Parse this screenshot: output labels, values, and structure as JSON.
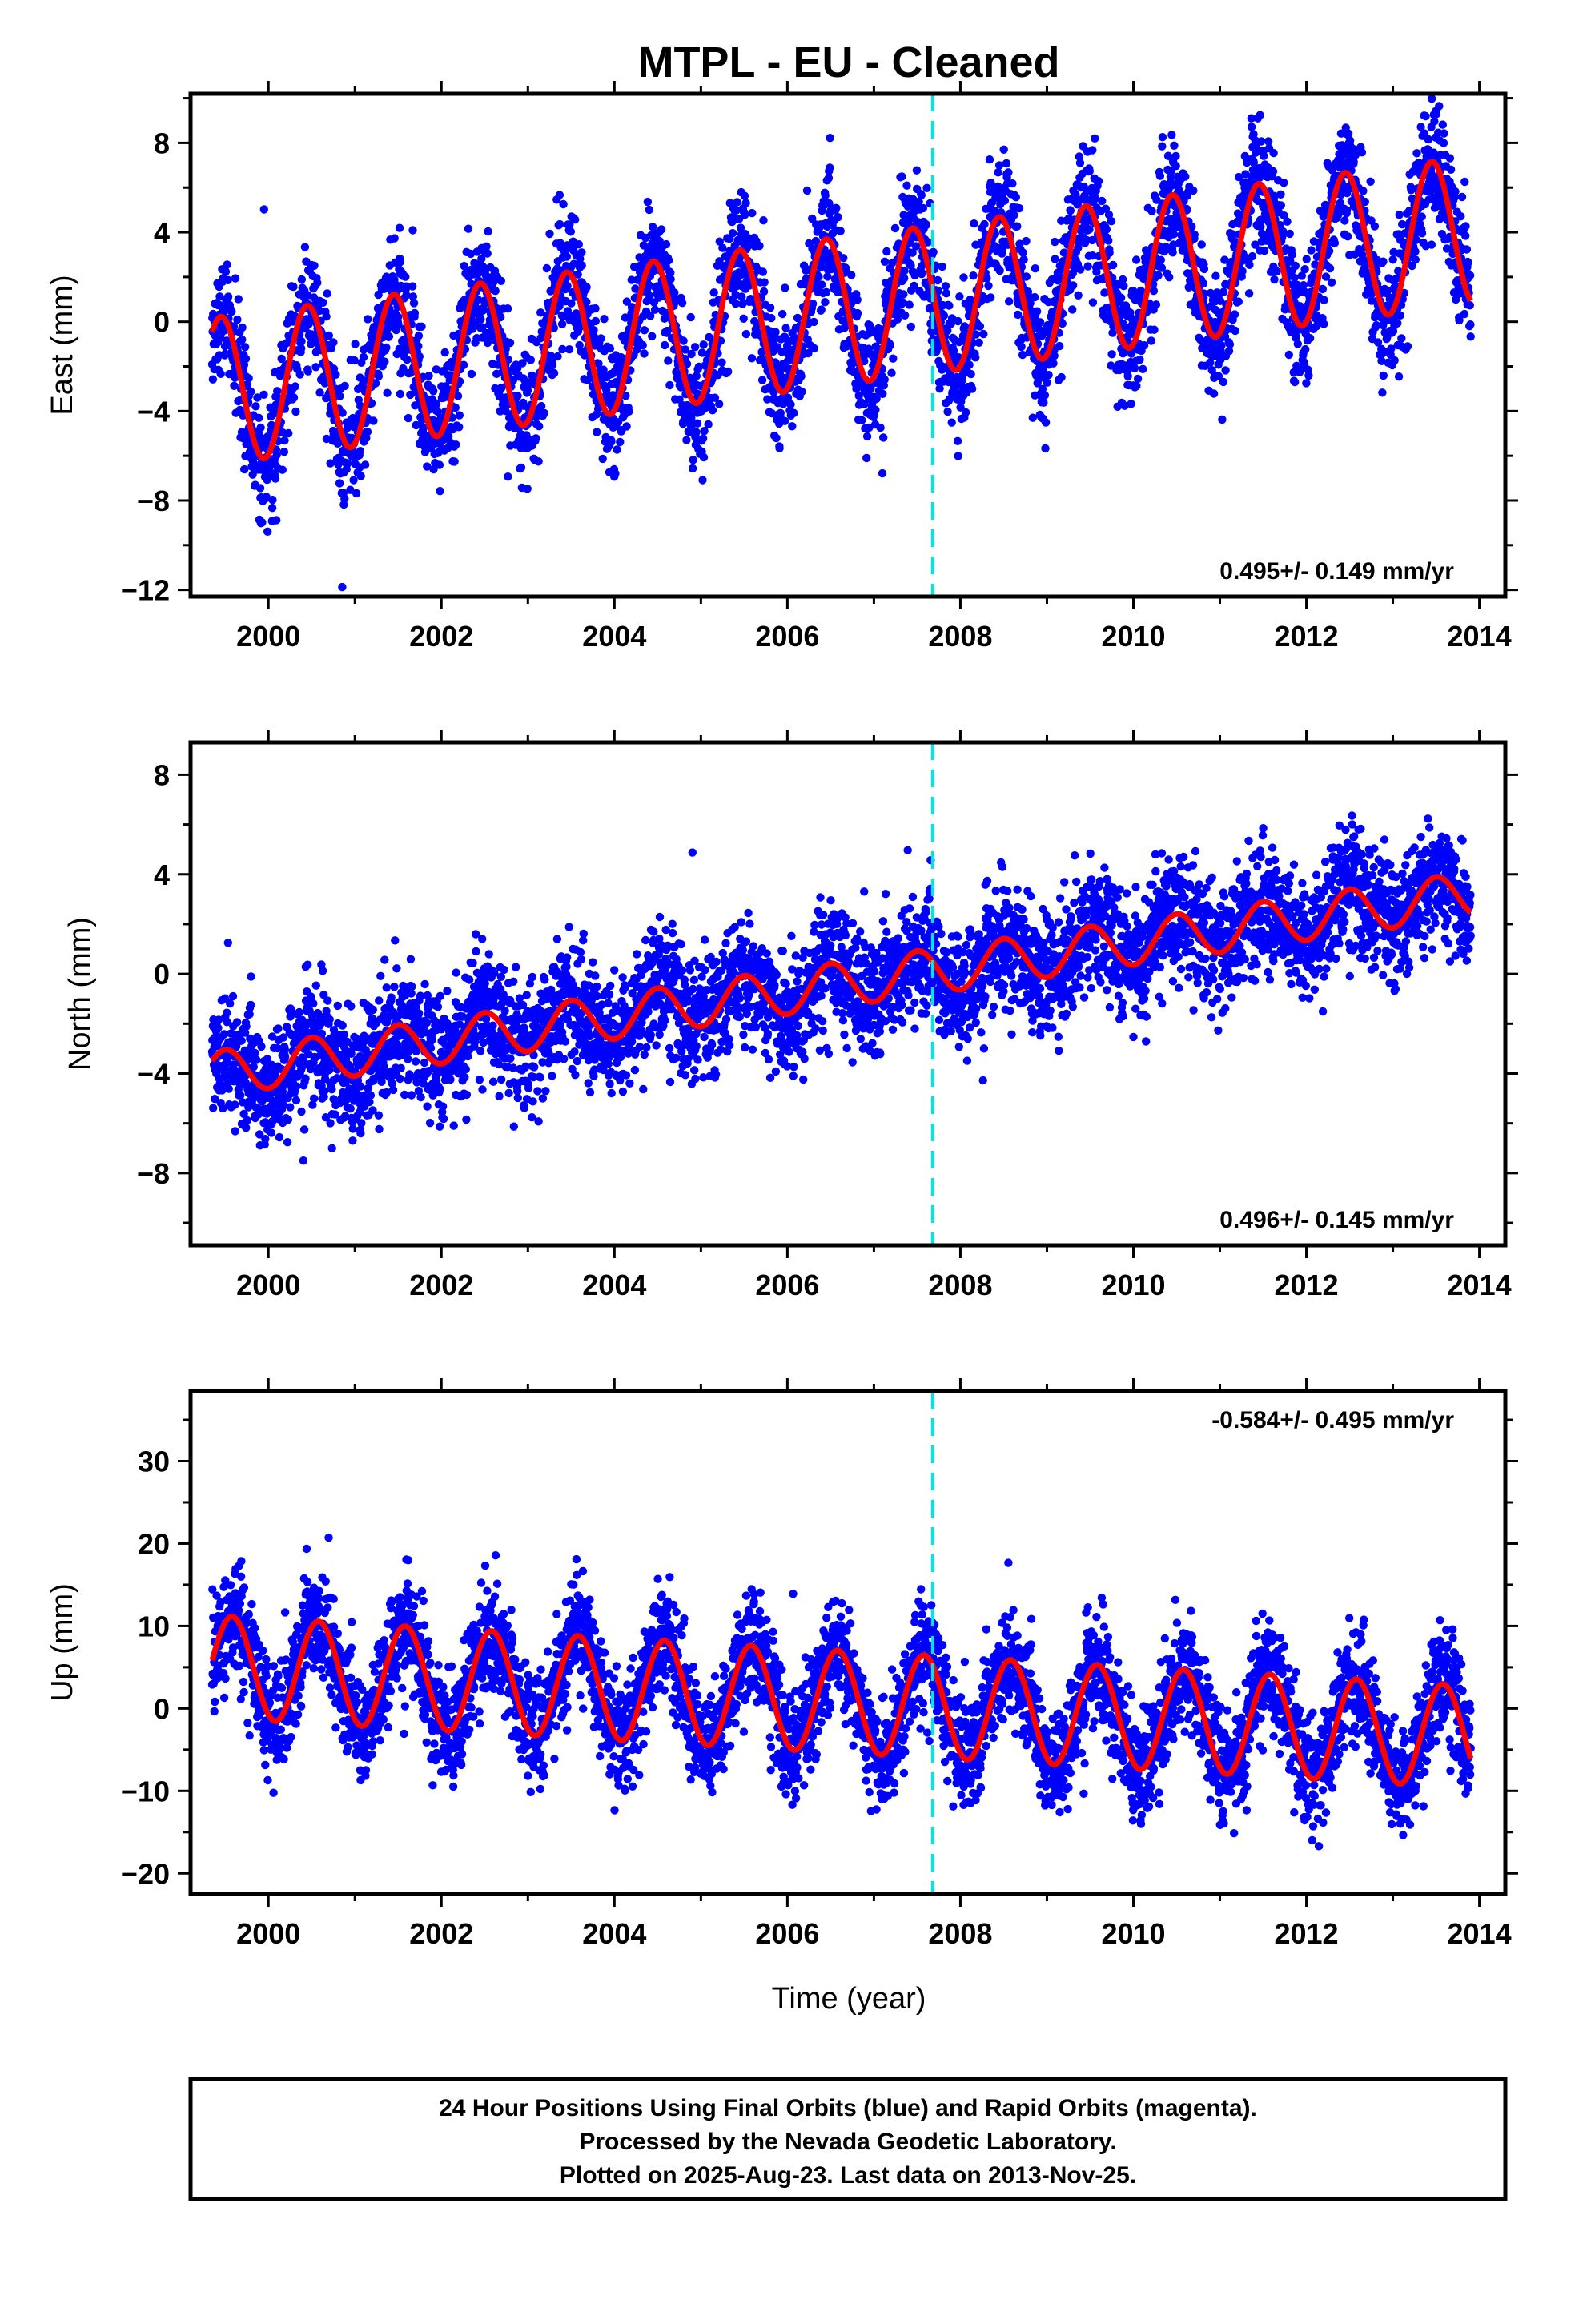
{
  "chart_data": {
    "type": "scatter",
    "title": "MTPL  - EU - Cleaned",
    "xlabel": "Time (year)",
    "xlim": [
      1999.1,
      2014.3
    ],
    "xticks": [
      2000,
      2002,
      2004,
      2006,
      2008,
      2010,
      2012,
      2014
    ],
    "event_line_year": 2007.68,
    "colors": {
      "points": "#0000ff",
      "fit": "#ff0000",
      "event_line": "#00e5e5",
      "frame": "#000000"
    },
    "data_span": [
      1999.35,
      2013.9
    ],
    "panels": [
      {
        "name": "east",
        "ylabel": "East (mm)",
        "ylim": [
          -12.3,
          10.2
        ],
        "yticks": [
          8,
          4,
          0,
          -4,
          -8,
          -12
        ],
        "rate_text": "0.495+/- 0.149 mm/yr",
        "rate_position": "bottom-right",
        "trend": {
          "slope": 0.495,
          "value_at_2000": -2.8
        },
        "seasonal": {
          "amplitude": 3.3,
          "peak_year_fraction": 0.45
        },
        "noise_sd": 1.4
      },
      {
        "name": "north",
        "ylabel": "North (mm)",
        "ylim": [
          -10.9,
          9.3
        ],
        "yticks": [
          8,
          4,
          0,
          -4,
          -8
        ],
        "rate_text": "0.496+/- 0.145 mm/yr",
        "rate_position": "bottom-right",
        "trend": {
          "slope": 0.496,
          "value_at_2000": -3.7
        },
        "seasonal": {
          "amplitude": 0.9,
          "peak_year_fraction": 0.5
        },
        "noise_sd": 1.2
      },
      {
        "name": "up",
        "ylabel": "Up (mm)",
        "ylim": [
          -22.5,
          38.5
        ],
        "yticks": [
          30,
          20,
          10,
          0,
          -10,
          -20
        ],
        "rate_text": "-0.584+/- 0.495 mm/yr",
        "rate_position": "top-right",
        "trend": {
          "slope": -0.584,
          "value_at_2000": 4.7
        },
        "seasonal": {
          "amplitude": 6.2,
          "peak_year_fraction": 0.58
        },
        "noise_sd": 3.3
      }
    ],
    "footer": [
      "24 Hour Positions Using Final Orbits (blue) and Rapid Orbits (magenta).",
      "Processed by the Nevada Geodetic Laboratory.",
      "Plotted on 2025-Aug-23. Last data on 2013-Nov-25."
    ]
  }
}
